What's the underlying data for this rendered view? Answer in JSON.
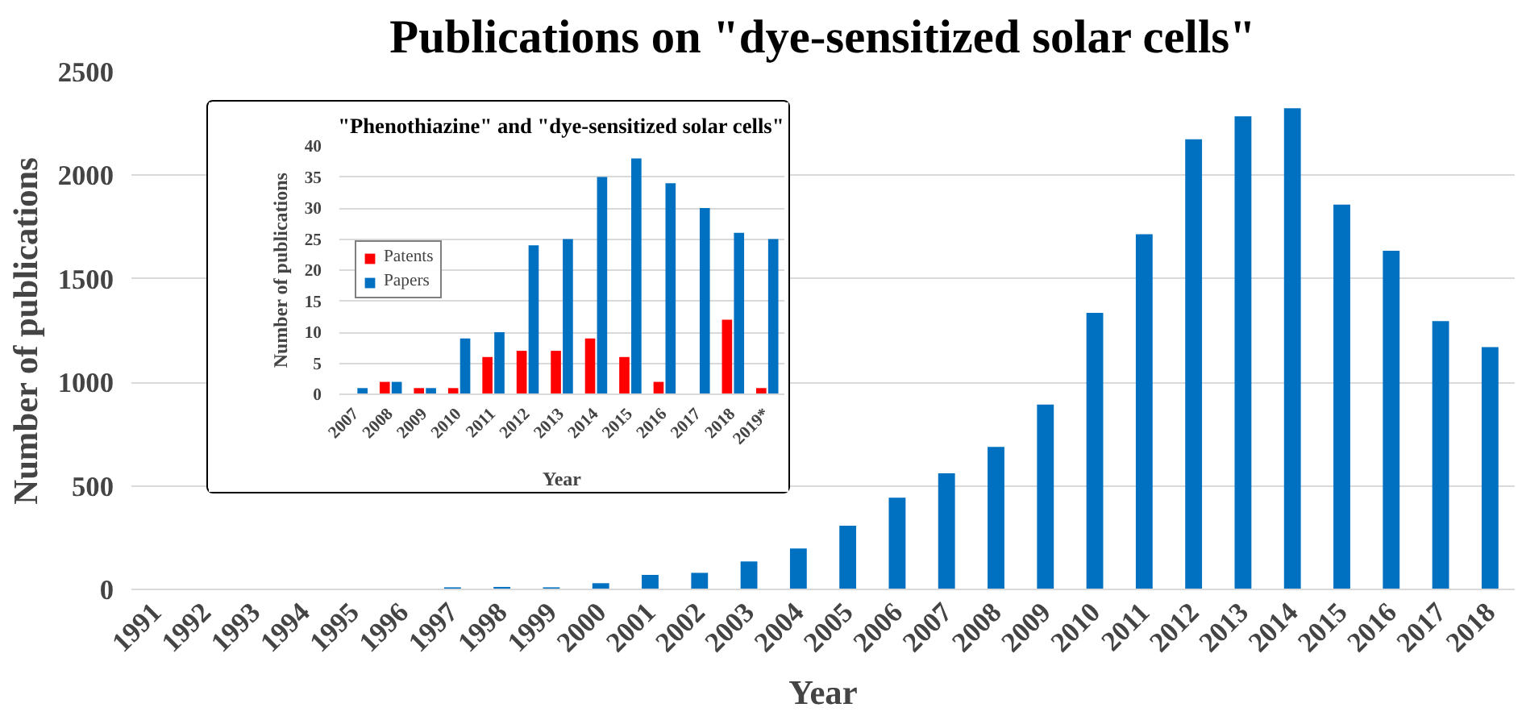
{
  "chart_data": [
    {
      "type": "bar",
      "title": "Publications on \"dye-sensitized solar cells\"",
      "xlabel": "Year",
      "ylabel": "Number of publications",
      "categories": [
        "1991",
        "1992",
        "1993",
        "1994",
        "1995",
        "1996",
        "1997",
        "1998",
        "1999",
        "2000",
        "2001",
        "2002",
        "2003",
        "2004",
        "2005",
        "2006",
        "2007",
        "2008",
        "2009",
        "2010",
        "2011",
        "2012",
        "2013",
        "2014",
        "2015",
        "2016",
        "2017",
        "2018"
      ],
      "series": [
        {
          "color": "#0070c0",
          "values": [
            0,
            0,
            0,
            0,
            0,
            0,
            10,
            12,
            10,
            30,
            70,
            80,
            135,
            198,
            308,
            443,
            561,
            688,
            893,
            1336,
            1715,
            2174,
            2285,
            2324,
            1858,
            1636,
            1296,
            1170
          ]
        }
      ],
      "ylim": [
        0,
        2500
      ],
      "yticks": [
        0,
        500,
        1000,
        1500,
        2000,
        2500
      ],
      "grid": "y",
      "legend": false
    },
    {
      "type": "bar",
      "title": "\"Phenothiazine\" and \"dye-sensitized solar cells\"",
      "xlabel": "Year",
      "ylabel": "Number of publications",
      "categories": [
        "2007",
        "2008",
        "2009",
        "2010",
        "2011",
        "2012",
        "2013",
        "2014",
        "2015",
        "2016",
        "2017",
        "2018",
        "2019*"
      ],
      "series": [
        {
          "name": "Patents",
          "color": "#ff0000",
          "values": [
            0,
            2,
            1,
            1,
            6,
            7,
            7,
            9,
            6,
            2,
            0,
            12,
            1
          ]
        },
        {
          "name": "Papers",
          "color": "#0070c0",
          "values": [
            1,
            2,
            1,
            9,
            10,
            24,
            25,
            35,
            38,
            34,
            30,
            26,
            25
          ]
        }
      ],
      "ylim": [
        0,
        40
      ],
      "yticks": [
        0,
        5,
        10,
        15,
        20,
        25,
        30,
        35,
        40
      ],
      "grid": "y",
      "legend": "left"
    }
  ]
}
